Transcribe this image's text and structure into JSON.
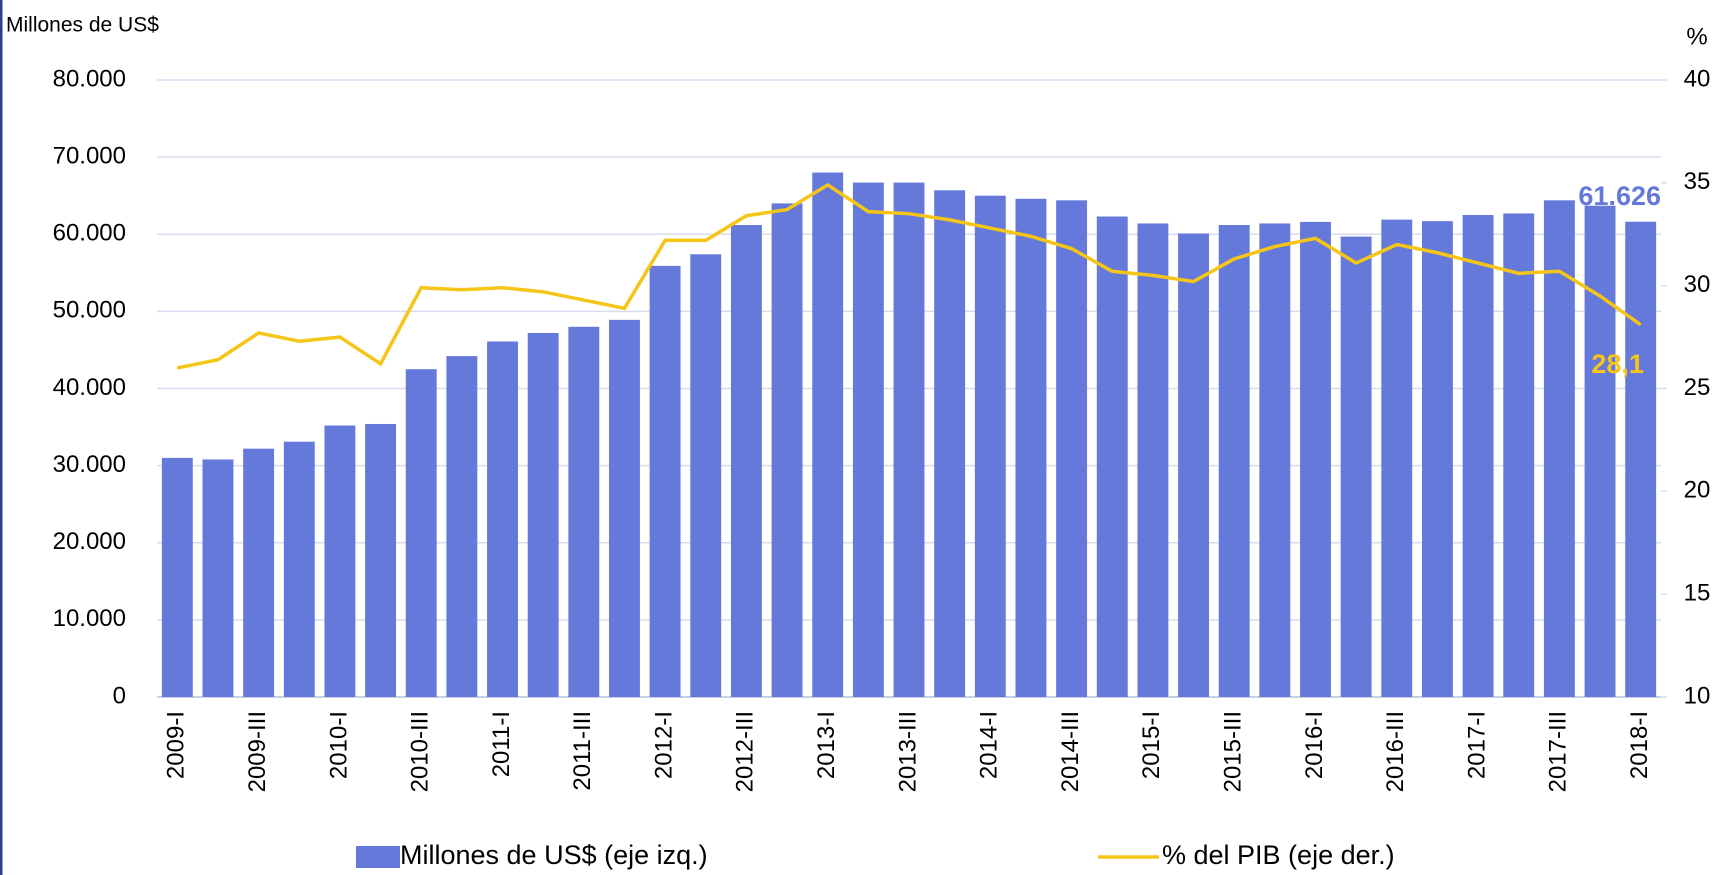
{
  "chart_data": {
    "type": "bar_line",
    "y_label": "Millones de US$",
    "y2_label": "%",
    "categories": [
      "2009-I",
      null,
      "2009-III",
      null,
      "2010-I",
      null,
      "2010-III",
      null,
      "2011-I",
      null,
      "2011-III",
      null,
      "2012-I",
      null,
      "2012-III",
      null,
      "2013-I",
      null,
      "2013-III",
      null,
      "2014-I",
      null,
      "2014-III",
      null,
      "2015-I",
      null,
      "2015-III",
      null,
      "2016-I",
      null,
      "2016-III",
      null,
      "2017-I",
      null,
      "2017-III",
      null,
      "2018-I"
    ],
    "series": [
      {
        "name": "Millones de US$ (eje izq.)",
        "type": "bar",
        "color": "#6479d9",
        "values": [
          31000,
          30800,
          32200,
          33100,
          35200,
          35400,
          42500,
          44200,
          46100,
          47200,
          48000,
          48900,
          55900,
          57400,
          61200,
          64000,
          68000,
          66700,
          66700,
          65700,
          65000,
          64600,
          64400,
          62300,
          61400,
          60100,
          61200,
          61400,
          61600,
          59700,
          61900,
          61700,
          62500,
          62700,
          64400,
          63700,
          61626
        ],
        "value_labels": [
          null,
          null,
          null,
          null,
          null,
          null,
          null,
          null,
          null,
          null,
          null,
          null,
          null,
          null,
          null,
          null,
          null,
          null,
          null,
          null,
          null,
          null,
          null,
          null,
          null,
          null,
          null,
          null,
          null,
          null,
          null,
          null,
          null,
          null,
          null,
          null,
          "61.626"
        ]
      },
      {
        "name": "% del PIB (eje der.)",
        "type": "line",
        "axis": "y2",
        "color": "#f5c518",
        "values": [
          26.0,
          26.4,
          27.7,
          27.3,
          27.5,
          26.2,
          29.9,
          29.8,
          29.9,
          29.7,
          29.3,
          28.9,
          32.2,
          32.2,
          33.4,
          33.7,
          34.9,
          33.6,
          33.5,
          33.2,
          32.8,
          32.4,
          31.8,
          30.7,
          30.5,
          30.2,
          31.3,
          31.9,
          32.3,
          31.1,
          32.0,
          31.6,
          31.1,
          30.6,
          30.7,
          29.5,
          28.1
        ],
        "value_labels": [
          null,
          null,
          null,
          null,
          null,
          null,
          null,
          null,
          null,
          null,
          null,
          null,
          null,
          null,
          null,
          null,
          null,
          null,
          null,
          null,
          null,
          null,
          null,
          null,
          null,
          null,
          null,
          null,
          null,
          null,
          null,
          null,
          null,
          null,
          null,
          null,
          "28,1"
        ]
      }
    ],
    "ylim": [
      0,
      80000
    ],
    "yticks": [
      0,
      {
        "value": 10000,
        "label": "10.000"
      },
      {
        "value": 20000,
        "label": "20.000"
      },
      {
        "value": 30000,
        "label": "30.000"
      },
      {
        "value": 40000,
        "label": "40.000"
      },
      {
        "value": 50000,
        "label": "50.000"
      },
      {
        "value": 60000,
        "label": "60.000"
      },
      {
        "value": 70000,
        "label": "70.000"
      },
      {
        "value": 80000,
        "label": "80.000"
      }
    ],
    "y2lim": [
      10,
      40
    ],
    "y2ticks": [
      10,
      15,
      20,
      25,
      30,
      35,
      40
    ],
    "grid": true
  }
}
